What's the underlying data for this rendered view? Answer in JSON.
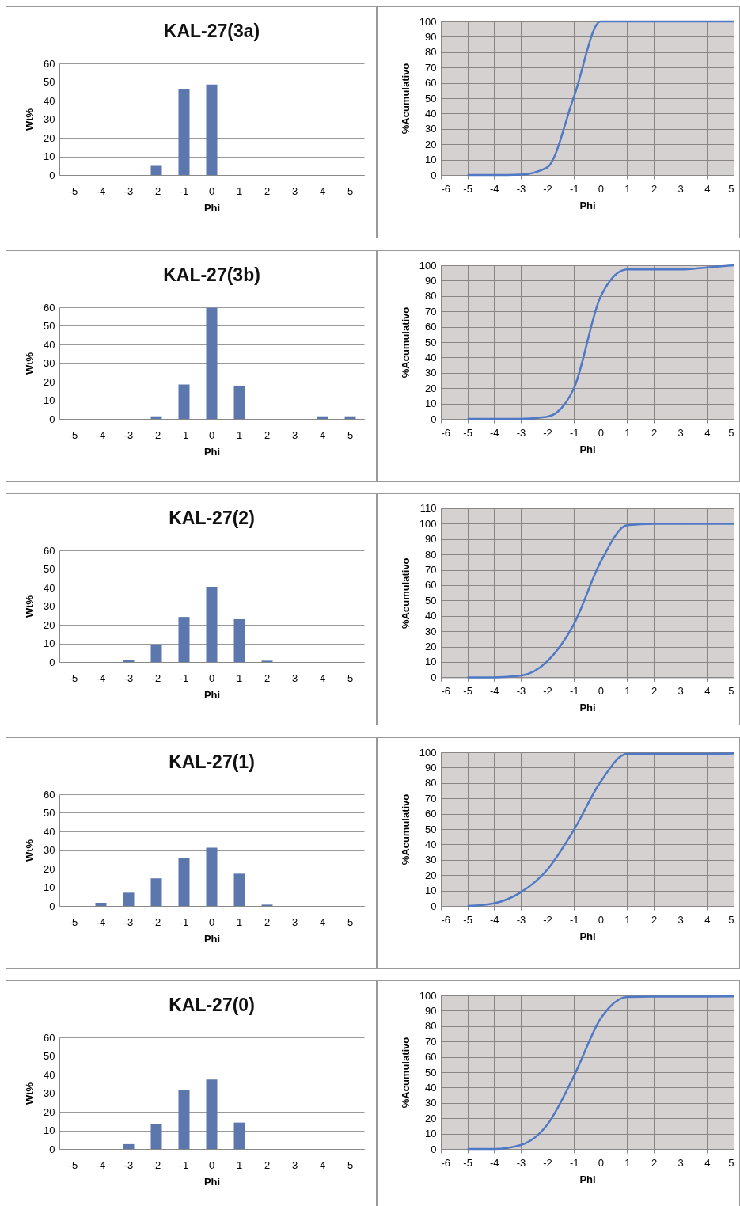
{
  "chart_data": [
    {
      "type": "bar",
      "title": "KAL-27(3a)",
      "xlabel": "Phi",
      "ylabel": "Wt%",
      "categories": [
        "-5",
        "-4",
        "-3",
        "-2",
        "-1",
        "0",
        "1",
        "2",
        "3",
        "4",
        "5"
      ],
      "color": "#5b77ae",
      "values": [
        0,
        0,
        0,
        4.9,
        46.1,
        48.6,
        0,
        0,
        0,
        0,
        0
      ],
      "ylim": [
        0,
        60
      ],
      "yticks": [
        0,
        10,
        20,
        30,
        40,
        50,
        60
      ],
      "grid": "y"
    },
    {
      "type": "line",
      "xlabel": "Phi",
      "ylabel": "%Acumulativo",
      "x": [
        -5,
        -4,
        -3,
        -2,
        -1,
        0,
        1,
        2,
        3,
        4,
        5
      ],
      "color": "#4f79c4",
      "values": [
        0,
        0,
        0.3,
        5,
        51,
        100,
        100,
        100,
        100,
        100,
        100
      ],
      "xlim": [
        -6,
        5
      ],
      "xticks": [
        -6,
        -5,
        -4,
        -3,
        -2,
        -1,
        0,
        1,
        2,
        3,
        4,
        5
      ],
      "ylim": [
        0,
        100
      ],
      "yticks": [
        0,
        10,
        20,
        30,
        40,
        50,
        60,
        70,
        80,
        90,
        100
      ],
      "grid": true
    },
    {
      "type": "bar",
      "title": "KAL-27(3b)",
      "xlabel": "Phi",
      "ylabel": "Wt%",
      "categories": [
        "-5",
        "-4",
        "-3",
        "-2",
        "-1",
        "0",
        "1",
        "2",
        "3",
        "4",
        "5"
      ],
      "color": "#5b77ae",
      "values": [
        0,
        0,
        0,
        1.4,
        18.5,
        59.7,
        17.9,
        0,
        0,
        1.4,
        1.4
      ],
      "ylim": [
        0,
        60
      ],
      "yticks": [
        0,
        10,
        20,
        30,
        40,
        50,
        60
      ],
      "grid": "y"
    },
    {
      "type": "line",
      "xlabel": "Phi",
      "ylabel": "%Acumulativo",
      "x": [
        -5,
        -4,
        -3,
        -2,
        -1,
        0,
        1,
        2,
        3,
        4,
        5
      ],
      "color": "#4f79c4",
      "values": [
        0,
        0,
        0,
        1.4,
        20,
        79.5,
        97.3,
        97.3,
        97.3,
        98.6,
        100
      ],
      "xlim": [
        -6,
        5
      ],
      "xticks": [
        -6,
        -5,
        -4,
        -3,
        -2,
        -1,
        0,
        1,
        2,
        3,
        4,
        5
      ],
      "ylim": [
        0,
        100
      ],
      "yticks": [
        0,
        10,
        20,
        30,
        40,
        50,
        60,
        70,
        80,
        90,
        100
      ],
      "grid": true
    },
    {
      "type": "bar",
      "title": "KAL-27(2)",
      "xlabel": "Phi",
      "ylabel": "Wt%",
      "categories": [
        "-5",
        "-4",
        "-3",
        "-2",
        "-1",
        "0",
        "1",
        "2",
        "3",
        "4",
        "5"
      ],
      "color": "#5b77ae",
      "values": [
        0,
        0,
        1.1,
        9.4,
        24.2,
        40.4,
        23,
        0.7,
        0,
        0,
        0
      ],
      "ylim": [
        0,
        60
      ],
      "yticks": [
        0,
        10,
        20,
        30,
        40,
        50,
        60
      ],
      "grid": "y"
    },
    {
      "type": "line",
      "xlabel": "Phi",
      "ylabel": "%Acumulativo",
      "x": [
        -5,
        -4,
        -3,
        -2,
        -1,
        0,
        1,
        2,
        3,
        4,
        5
      ],
      "color": "#4f79c4",
      "values": [
        0,
        0,
        1.1,
        10.5,
        34.7,
        75.1,
        99,
        100,
        100,
        100,
        100
      ],
      "xlim": [
        -6,
        5
      ],
      "xticks": [
        -6,
        -5,
        -4,
        -3,
        -2,
        -1,
        0,
        1,
        2,
        3,
        4,
        5
      ],
      "ylim": [
        0,
        110
      ],
      "yticks": [
        0,
        10,
        20,
        30,
        40,
        50,
        60,
        70,
        80,
        90,
        100,
        110
      ],
      "grid": true
    },
    {
      "type": "bar",
      "title": "KAL-27(1)",
      "xlabel": "Phi",
      "ylabel": "Wt%",
      "categories": [
        "-5",
        "-4",
        "-3",
        "-2",
        "-1",
        "0",
        "1",
        "2",
        "3",
        "4",
        "5"
      ],
      "color": "#5b77ae",
      "values": [
        0,
        1.7,
        7.1,
        14.8,
        25.9,
        31.3,
        17.3,
        0.7,
        0,
        0,
        0
      ],
      "ylim": [
        0,
        60
      ],
      "yticks": [
        0,
        10,
        20,
        30,
        40,
        50,
        60
      ],
      "grid": "y"
    },
    {
      "type": "line",
      "xlabel": "Phi",
      "ylabel": "%Acumulativo",
      "x": [
        -5,
        -4,
        -3,
        -2,
        -1,
        0,
        1,
        2,
        3,
        4,
        5
      ],
      "color": "#4f79c4",
      "values": [
        0,
        1.7,
        8.8,
        23.6,
        49.5,
        80.8,
        99,
        99,
        99,
        99,
        99.2
      ],
      "xlim": [
        -6,
        5
      ],
      "xticks": [
        -6,
        -5,
        -4,
        -3,
        -2,
        -1,
        0,
        1,
        2,
        3,
        4,
        5
      ],
      "ylim": [
        0,
        100
      ],
      "yticks": [
        0,
        10,
        20,
        30,
        40,
        50,
        60,
        70,
        80,
        90,
        100
      ],
      "grid": true
    },
    {
      "type": "bar",
      "title": "KAL-27(0)",
      "xlabel": "Phi",
      "ylabel": "Wt%",
      "categories": [
        "-5",
        "-4",
        "-3",
        "-2",
        "-1",
        "0",
        "1",
        "2",
        "3",
        "4",
        "5"
      ],
      "color": "#5b77ae",
      "values": [
        0,
        0,
        2.6,
        13.3,
        31.6,
        37.3,
        14.2,
        null,
        0,
        0,
        null
      ],
      "ylim": [
        0,
        60
      ],
      "yticks": [
        0,
        10,
        20,
        30,
        40,
        50,
        60
      ],
      "grid": "y"
    },
    {
      "type": "line",
      "xlabel": "Phi",
      "ylabel": "%Acumulativo",
      "x": [
        -5,
        -4,
        -3,
        -2,
        -1,
        0,
        1,
        2,
        3,
        4,
        5
      ],
      "color": "#4f79c4",
      "values": [
        0,
        0,
        2.6,
        15.9,
        47.5,
        84.8,
        99,
        99.2,
        99.2,
        99.2,
        99.3
      ],
      "xlim": [
        -6,
        5
      ],
      "xticks": [
        -6,
        -5,
        -4,
        -3,
        -2,
        -1,
        0,
        1,
        2,
        3,
        4,
        5
      ],
      "ylim": [
        0,
        100
      ],
      "yticks": [
        0,
        10,
        20,
        30,
        40,
        50,
        60,
        70,
        80,
        90,
        100
      ],
      "grid": true
    }
  ]
}
